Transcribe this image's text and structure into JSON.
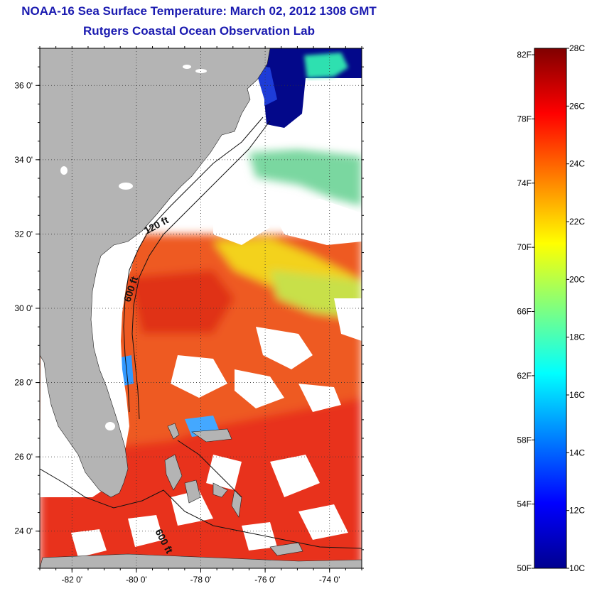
{
  "header": {
    "title": "NOAA-16 Sea Surface Temperature:  March 02, 2012 1308 GMT",
    "subtitle": "Rutgers Coastal Ocean Observation Lab"
  },
  "map": {
    "lon_range": [
      -83,
      -73
    ],
    "lat_range": [
      23,
      37
    ],
    "x_ticks": [
      {
        "lon": -82,
        "label": "-82 0'"
      },
      {
        "lon": -80,
        "label": "-80 0'"
      },
      {
        "lon": -78,
        "label": "-78 0'"
      },
      {
        "lon": -76,
        "label": "-76 0'"
      },
      {
        "lon": -74,
        "label": "-74 0'"
      }
    ],
    "y_ticks": [
      {
        "lat": 24,
        "label": "24 0'"
      },
      {
        "lat": 26,
        "label": "26 0'"
      },
      {
        "lat": 28,
        "label": "28 0'"
      },
      {
        "lat": 30,
        "label": "30 0'"
      },
      {
        "lat": 32,
        "label": "32 0'"
      },
      {
        "lat": 34,
        "label": "34 0'"
      },
      {
        "lat": 36,
        "label": "36 0'"
      }
    ],
    "isobath_labels": [
      "120 ft",
      "600 ft",
      "600 ft"
    ],
    "colors": {
      "land": "#b4b4b4",
      "cloud": "#ffffff",
      "cold": "#00008b",
      "warm": "#e8341c"
    }
  },
  "colorbar": {
    "fahrenheit": [
      {
        "value": 50,
        "label": "50F"
      },
      {
        "value": 54,
        "label": "54F"
      },
      {
        "value": 58,
        "label": "58F"
      },
      {
        "value": 62,
        "label": "62F"
      },
      {
        "value": 66,
        "label": "66F"
      },
      {
        "value": 70,
        "label": "70F"
      },
      {
        "value": 74,
        "label": "74F"
      },
      {
        "value": 78,
        "label": "78F"
      },
      {
        "value": 82,
        "label": "82F"
      }
    ],
    "celsius": [
      {
        "value": 10,
        "label": "10C"
      },
      {
        "value": 12,
        "label": "12C"
      },
      {
        "value": 14,
        "label": "14C"
      },
      {
        "value": 16,
        "label": "16C"
      },
      {
        "value": 18,
        "label": "18C"
      },
      {
        "value": 20,
        "label": "20C"
      },
      {
        "value": 22,
        "label": "22C"
      },
      {
        "value": 24,
        "label": "24C"
      },
      {
        "value": 26,
        "label": "26C"
      },
      {
        "value": 28,
        "label": "28C"
      }
    ],
    "range_c": [
      10,
      28
    ]
  }
}
